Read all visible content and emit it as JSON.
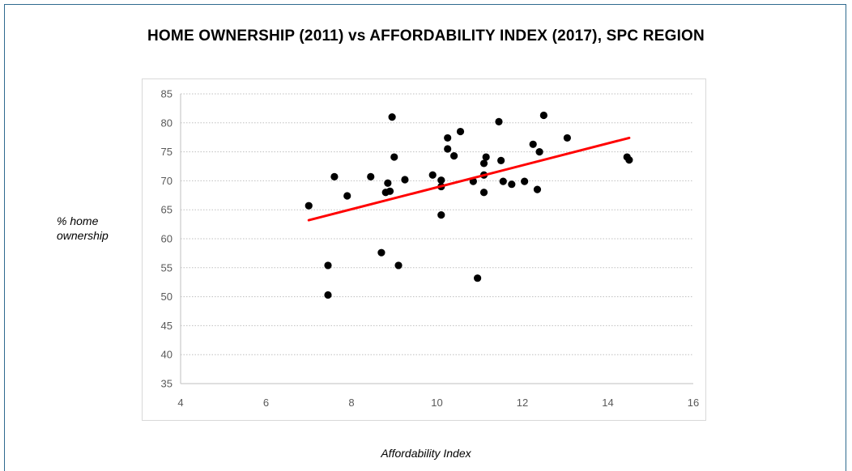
{
  "chart_data": {
    "type": "scatter",
    "title": "HOME OWNERSHIP (2011) vs AFFORDABILITY INDEX (2017), SPC REGION",
    "xlabel": "Affordability Index",
    "ylabel": "% home ownership",
    "xlim": [
      4,
      16
    ],
    "ylim": [
      35,
      85
    ],
    "x_ticks": [
      4,
      6,
      8,
      10,
      12,
      14,
      16
    ],
    "y_ticks": [
      35,
      40,
      45,
      50,
      55,
      60,
      65,
      70,
      75,
      80,
      85
    ],
    "grid": "horizontal",
    "point_color": "#000000",
    "trendline": {
      "color": "#ff0000",
      "x": [
        7.0,
        14.5
      ],
      "y": [
        63.2,
        77.4
      ]
    },
    "points": [
      {
        "x": 7.0,
        "y": 65.7
      },
      {
        "x": 7.45,
        "y": 55.4
      },
      {
        "x": 7.45,
        "y": 50.3
      },
      {
        "x": 7.6,
        "y": 70.7
      },
      {
        "x": 7.9,
        "y": 67.4
      },
      {
        "x": 8.45,
        "y": 70.7
      },
      {
        "x": 8.7,
        "y": 57.6
      },
      {
        "x": 8.8,
        "y": 68.0
      },
      {
        "x": 8.85,
        "y": 69.6
      },
      {
        "x": 8.9,
        "y": 68.2
      },
      {
        "x": 8.95,
        "y": 81.0
      },
      {
        "x": 9.0,
        "y": 74.1
      },
      {
        "x": 9.1,
        "y": 55.4
      },
      {
        "x": 9.25,
        "y": 70.2
      },
      {
        "x": 9.9,
        "y": 71.0
      },
      {
        "x": 10.1,
        "y": 64.1
      },
      {
        "x": 10.1,
        "y": 69.0
      },
      {
        "x": 10.1,
        "y": 70.1
      },
      {
        "x": 10.25,
        "y": 75.5
      },
      {
        "x": 10.25,
        "y": 77.4
      },
      {
        "x": 10.4,
        "y": 74.3
      },
      {
        "x": 10.55,
        "y": 78.5
      },
      {
        "x": 10.85,
        "y": 69.9
      },
      {
        "x": 10.95,
        "y": 53.2
      },
      {
        "x": 11.1,
        "y": 68.0
      },
      {
        "x": 11.1,
        "y": 71.0
      },
      {
        "x": 11.1,
        "y": 73.0
      },
      {
        "x": 11.15,
        "y": 74.1
      },
      {
        "x": 11.45,
        "y": 80.2
      },
      {
        "x": 11.5,
        "y": 73.5
      },
      {
        "x": 11.55,
        "y": 69.9
      },
      {
        "x": 11.75,
        "y": 69.4
      },
      {
        "x": 12.05,
        "y": 69.9
      },
      {
        "x": 12.25,
        "y": 76.3
      },
      {
        "x": 12.35,
        "y": 68.5
      },
      {
        "x": 12.4,
        "y": 75.0
      },
      {
        "x": 12.5,
        "y": 81.3
      },
      {
        "x": 13.05,
        "y": 77.4
      },
      {
        "x": 14.45,
        "y": 74.1
      },
      {
        "x": 14.5,
        "y": 73.6
      }
    ]
  }
}
